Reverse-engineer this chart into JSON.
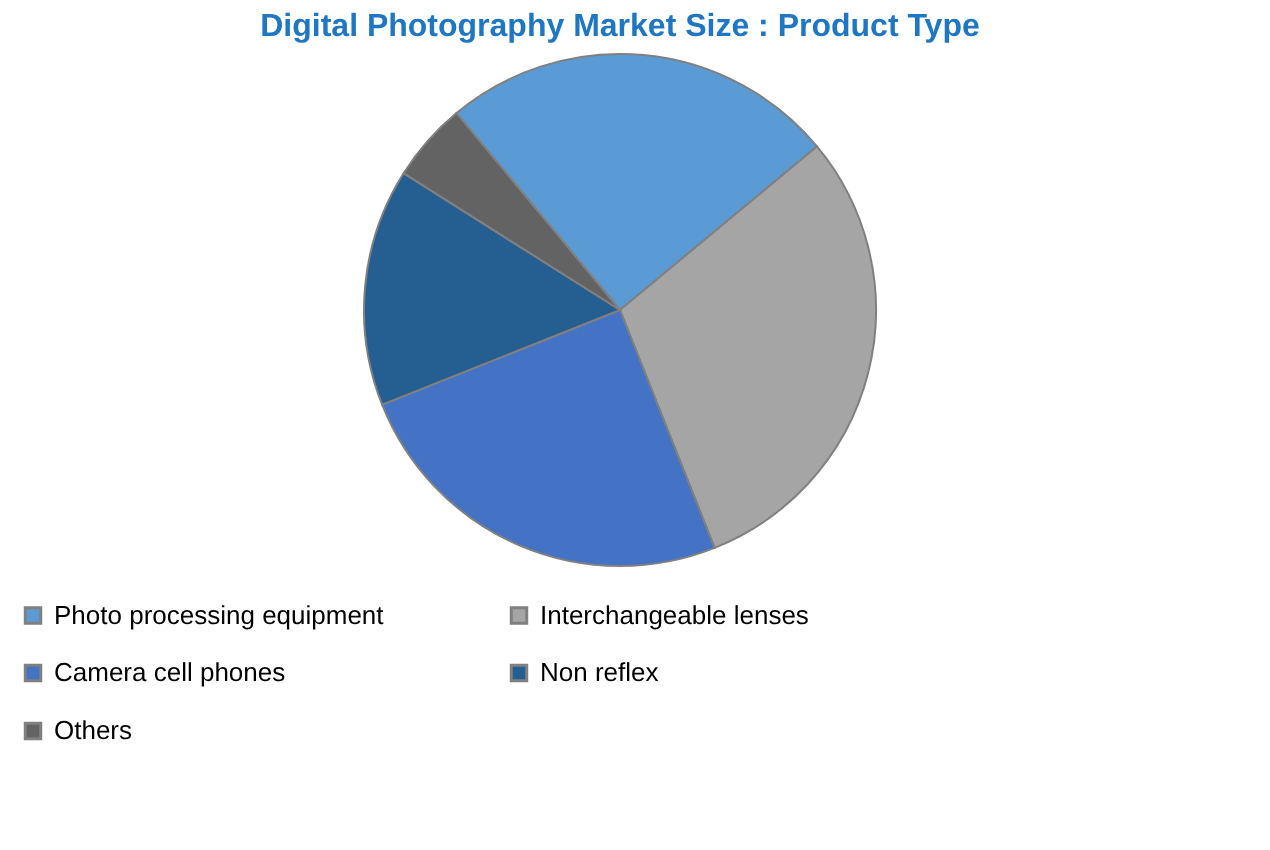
{
  "chart_data": {
    "type": "pie",
    "title": "Digital Photography Market Size : Product Type",
    "categories": [
      "Photo processing equipment",
      "Interchangeable lenses",
      "Camera cell phones",
      "Non reflex",
      "Others"
    ],
    "values": [
      25,
      30,
      25,
      15,
      5
    ],
    "colors": [
      "#5b9bd5",
      "#a5a5a5",
      "#4472c4",
      "#255e91",
      "#636363"
    ],
    "legend": "bottom"
  }
}
